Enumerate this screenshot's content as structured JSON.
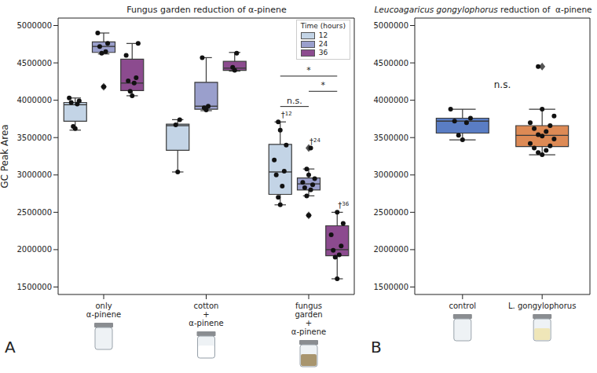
{
  "chart_data": [
    {
      "type": "box",
      "panel": "A",
      "title": "Fungus garden reduction of α-pinene",
      "y_label": "GC Peak Area",
      "categories": [
        "only α-pinene",
        "cotton + α-pinene",
        "fungus garden + α-pinene"
      ],
      "legend": "upper right",
      "legend_title": "Time (hours)",
      "ylim": [
        1400000,
        5100000
      ],
      "yticks": [
        1500000,
        2000000,
        2500000,
        3000000,
        3500000,
        4000000,
        4500000,
        5000000
      ],
      "series": [
        {
          "name": "12",
          "color": "#c3d4e6",
          "boxes": [
            {
              "whisker_low": 3600000,
              "q1": 3720000,
              "median": 3940000,
              "q3": 3970000,
              "whisker_high": 4030000,
              "points": [
                3620000,
                3650000,
                3950000,
                3970000,
                3990000,
                4030000
              ],
              "outliers": []
            },
            {
              "whisker_low": 3040000,
              "q1": 3330000,
              "median": 3660000,
              "q3": 3680000,
              "whisker_high": 3740000,
              "points": [
                3040000,
                3670000,
                3740000
              ],
              "outliers": []
            },
            {
              "whisker_low": 2600000,
              "q1": 2740000,
              "median": 3040000,
              "q3": 3410000,
              "whisker_high": 3710000,
              "points": [
                2600000,
                2700000,
                2850000,
                3000000,
                3050000,
                3200000,
                3400000,
                3600000,
                3710000
              ],
              "outliers": []
            }
          ]
        },
        {
          "name": "24",
          "color": "#9a9fcc",
          "boxes": [
            {
              "whisker_low": 4620000,
              "q1": 4640000,
              "median": 4720000,
              "q3": 4780000,
              "whisker_high": 4900000,
              "points": [
                4180000,
                4630000,
                4650000,
                4720000,
                4760000,
                4900000
              ],
              "outliers": [
                4180000
              ]
            },
            {
              "whisker_low": 3860000,
              "q1": 3880000,
              "median": 3920000,
              "q3": 4240000,
              "whisker_high": 4570000,
              "points": [
                3870000,
                3900000,
                3920000,
                4570000
              ],
              "outliers": []
            },
            {
              "whisker_low": 2720000,
              "q1": 2800000,
              "median": 2880000,
              "q3": 2960000,
              "whisker_high": 3080000,
              "points": [
                2460000,
                2720000,
                2800000,
                2830000,
                2870000,
                2900000,
                2950000,
                3000000,
                3080000,
                3360000
              ],
              "outliers": [
                3360000,
                2460000
              ]
            }
          ]
        },
        {
          "name": "36",
          "color": "#8c4b8f",
          "boxes": [
            {
              "whisker_low": 4060000,
              "q1": 4130000,
              "median": 4230000,
              "q3": 4550000,
              "whisker_high": 4760000,
              "points": [
                4060000,
                4120000,
                4230000,
                4260000,
                4300000,
                4600000,
                4760000
              ],
              "outliers": []
            },
            {
              "whisker_low": 4390000,
              "q1": 4400000,
              "median": 4430000,
              "q3": 4520000,
              "whisker_high": 4640000,
              "points": [
                4400000,
                4440000,
                4630000
              ],
              "outliers": []
            },
            {
              "whisker_low": 1610000,
              "q1": 1920000,
              "median": 2000000,
              "q3": 2320000,
              "whisker_high": 2500000,
              "points": [
                1610000,
                1900000,
                1930000,
                1990000,
                2050000,
                2200000,
                2350000,
                2500000
              ],
              "outliers": []
            }
          ]
        }
      ],
      "markers": [
        {
          "symbol": "†",
          "label": "12",
          "series": "12",
          "category": "fungus garden + α-pinene"
        },
        {
          "symbol": "†",
          "label": "24",
          "series": "24",
          "category": "fungus garden + α-pinene"
        },
        {
          "symbol": "†",
          "label": "36",
          "series": "36",
          "category": "fungus garden + α-pinene"
        }
      ],
      "significance": [
        {
          "label": "n.s.",
          "from": "12",
          "to": "24",
          "category": "fungus garden + α-pinene"
        },
        {
          "label": "*",
          "from": "24",
          "to": "36",
          "category": "fungus garden + α-pinene"
        },
        {
          "label": "*",
          "from": "12",
          "to": "36",
          "category": "fungus garden + α-pinene"
        }
      ]
    },
    {
      "type": "box",
      "panel": "B",
      "title": "Leucoagaricus gongylophorus reduction of  α-pinene",
      "categories": [
        "control",
        "L. gongylophorus"
      ],
      "colors": [
        "#5a7dc4",
        "#dd8a55"
      ],
      "ylim": [
        1400000,
        5100000
      ],
      "yticks": [
        1500000,
        2000000,
        2500000,
        3000000,
        3500000,
        4000000,
        4500000,
        5000000
      ],
      "boxes": [
        {
          "whisker_low": 3470000,
          "q1": 3560000,
          "median": 3720000,
          "q3": 3760000,
          "whisker_high": 3880000,
          "points": [
            3470000,
            3530000,
            3700000,
            3720000,
            3760000,
            3880000
          ],
          "outliers": []
        },
        {
          "whisker_low": 3270000,
          "q1": 3380000,
          "median": 3530000,
          "q3": 3660000,
          "whisker_high": 3880000,
          "points": [
            3270000,
            3300000,
            3330000,
            3360000,
            3390000,
            3420000,
            3480000,
            3520000,
            3540000,
            3580000,
            3620000,
            3660000,
            3700000,
            3790000,
            3880000,
            4450000
          ],
          "outliers": [
            4450000
          ]
        }
      ],
      "annotation": "n.s."
    }
  ]
}
